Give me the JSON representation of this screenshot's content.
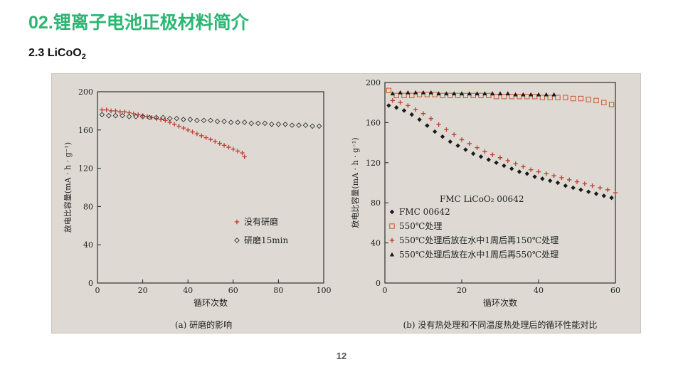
{
  "slide": {
    "title": "02.锂离子电池正极材料简介",
    "subtitle_main": "2.3 LiCoO",
    "subtitle_sub": "2",
    "page_number": "12"
  },
  "chart_data": [
    {
      "type": "scatter",
      "caption": "(a) 研磨的影响",
      "xlabel": "循环次数",
      "ylabel": "放电比容量(mA · h · g⁻¹)",
      "xlim": [
        0,
        100
      ],
      "ylim": [
        0,
        200
      ],
      "xticks": [
        0,
        20,
        40,
        60,
        80,
        100
      ],
      "yticks": [
        40,
        80,
        120,
        160,
        200
      ],
      "legend_position": "right",
      "series": [
        {
          "name": "没有研磨",
          "marker": "+",
          "x": [
            2,
            4,
            6,
            8,
            10,
            12,
            14,
            16,
            18,
            20,
            22,
            24,
            26,
            28,
            30,
            32,
            34,
            36,
            38,
            40,
            42,
            44,
            46,
            48,
            50,
            52,
            54,
            56,
            58,
            60,
            62,
            64,
            65
          ],
          "y": [
            181,
            181,
            180,
            180,
            179,
            179,
            178,
            177,
            176,
            175,
            174,
            173,
            172,
            171,
            170,
            168,
            166,
            164,
            162,
            160,
            158,
            156,
            154,
            152,
            150,
            148,
            146,
            144,
            142,
            140,
            138,
            136,
            132
          ]
        },
        {
          "name": "研磨15min",
          "marker": "diamond",
          "x": [
            2,
            5,
            8,
            11,
            14,
            17,
            20,
            23,
            26,
            29,
            32,
            35,
            38,
            41,
            44,
            47,
            50,
            53,
            56,
            59,
            62,
            65,
            68,
            71,
            74,
            77,
            80,
            83,
            86,
            89,
            92,
            95,
            98
          ],
          "y": [
            176,
            175,
            175,
            175,
            174,
            174,
            174,
            173,
            173,
            173,
            172,
            172,
            171,
            171,
            170,
            170,
            170,
            169,
            169,
            168,
            168,
            168,
            167,
            167,
            167,
            166,
            166,
            166,
            165,
            165,
            165,
            164,
            164
          ]
        }
      ]
    },
    {
      "type": "scatter",
      "caption": "(b) 没有热处理和不同温度热处理后的循环性能对比",
      "xlabel": "循环次数",
      "ylabel": "放电比容量(mA · h · g⁻¹)",
      "annotation": "FMC LiCoO₂ 00642",
      "xlim": [
        0,
        60
      ],
      "ylim": [
        0,
        200
      ],
      "xticks": [
        0,
        20,
        40,
        60
      ],
      "yticks": [
        40,
        80,
        120,
        160,
        200
      ],
      "legend_position": "bottom-left",
      "series": [
        {
          "name": "FMC 00642",
          "marker": "diamond-filled",
          "x": [
            1,
            3,
            5,
            7,
            9,
            11,
            13,
            15,
            17,
            19,
            21,
            23,
            25,
            27,
            29,
            31,
            33,
            35,
            37,
            39,
            41,
            43,
            45,
            47,
            49,
            51,
            53,
            55,
            57,
            59
          ],
          "y": [
            177,
            175,
            172,
            168,
            163,
            157,
            151,
            146,
            141,
            137,
            133,
            129,
            126,
            123,
            120,
            117,
            114,
            111,
            109,
            106,
            104,
            102,
            100,
            97,
            95,
            93,
            91,
            89,
            87,
            85
          ]
        },
        {
          "name": "550℃处理",
          "marker": "square-open",
          "x": [
            1,
            3,
            5,
            7,
            9,
            11,
            13,
            15,
            17,
            19,
            21,
            23,
            25,
            27,
            29,
            31,
            33,
            35,
            37,
            39,
            41,
            43,
            45,
            47,
            49,
            51,
            53,
            55,
            57,
            59
          ],
          "y": [
            192,
            187,
            187,
            187,
            188,
            188,
            188,
            187,
            187,
            187,
            187,
            187,
            187,
            187,
            186,
            186,
            186,
            186,
            186,
            186,
            185,
            185,
            185,
            185,
            184,
            184,
            183,
            182,
            180,
            178
          ]
        },
        {
          "name": "550℃处理后放在水中1周后再150℃处理",
          "marker": "+",
          "x": [
            2,
            4,
            6,
            8,
            10,
            12,
            14,
            16,
            18,
            20,
            22,
            24,
            26,
            28,
            30,
            32,
            34,
            36,
            38,
            40,
            42,
            44,
            46,
            48,
            50,
            52,
            54,
            56,
            58,
            60
          ],
          "y": [
            182,
            180,
            177,
            173,
            169,
            164,
            158,
            153,
            148,
            143,
            139,
            135,
            131,
            128,
            125,
            122,
            119,
            116,
            113,
            111,
            109,
            107,
            105,
            103,
            101,
            99,
            97,
            95,
            93,
            90
          ]
        },
        {
          "name": "550℃处理后放在水中1周后再550℃处理",
          "marker": "triangle-filled",
          "x": [
            2,
            4,
            6,
            8,
            10,
            12,
            14,
            16,
            18,
            20,
            22,
            24,
            26,
            28,
            30,
            32,
            34,
            36,
            38,
            40,
            42,
            44
          ],
          "y": [
            189,
            190,
            190,
            190,
            190,
            190,
            189,
            189,
            189,
            189,
            189,
            189,
            189,
            189,
            189,
            189,
            188,
            188,
            188,
            188,
            188,
            188
          ]
        }
      ]
    }
  ]
}
